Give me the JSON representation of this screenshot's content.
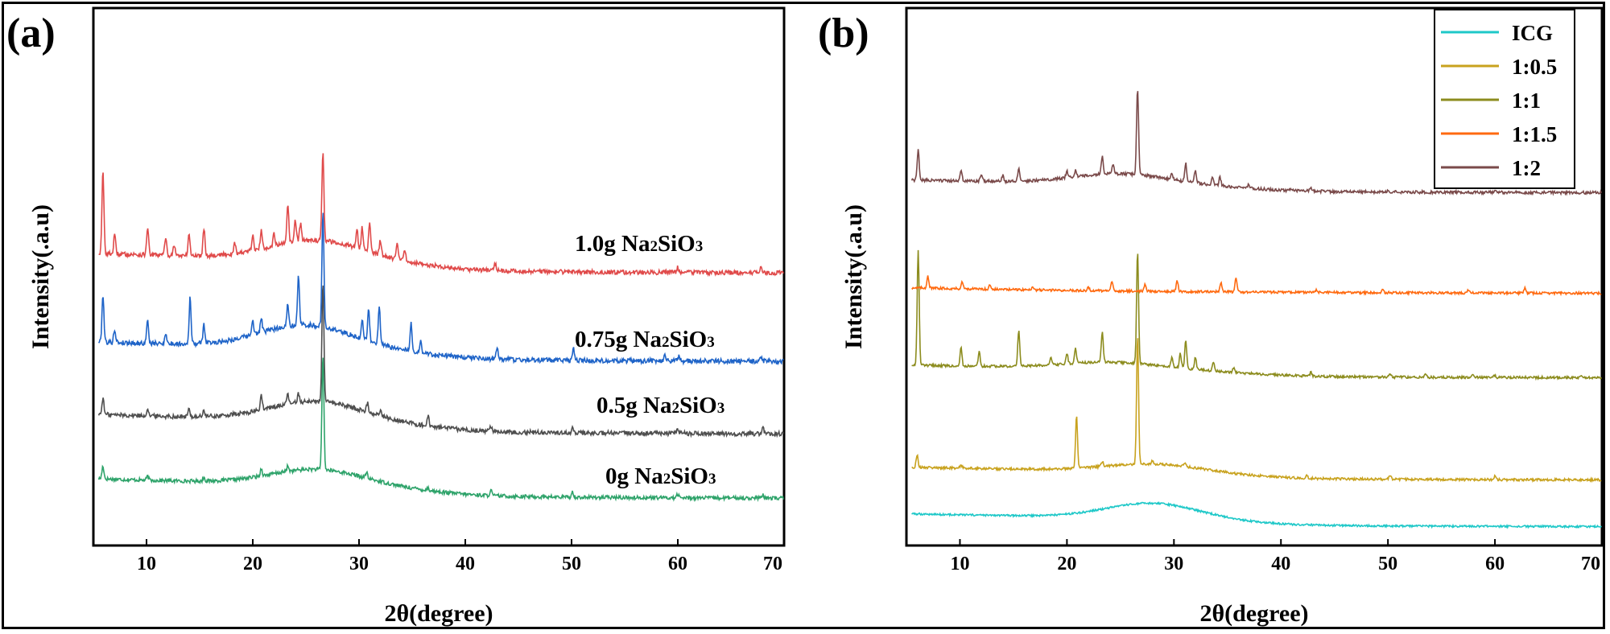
{
  "chart_data": [
    {
      "type": "line",
      "panel": "(a)",
      "xlabel": "2θ(degree)",
      "ylabel": "Intensity(.a.u)",
      "xlim": [
        5,
        70
      ],
      "x_ticks": [
        10,
        20,
        30,
        40,
        50,
        60,
        70
      ],
      "y_ticks": "none",
      "stacking": "vertical offset",
      "series": [
        {
          "name": "0g Na2SiO3",
          "label_main": "0g  Na",
          "label_sub": "2",
          "label_mid": "SiO",
          "label_sub2": "3",
          "color": "#2ea36a",
          "baseline": 0,
          "noise": 0.01,
          "peaks": [
            [
              5.9,
              0.07
            ],
            [
              10.1,
              0.02
            ],
            [
              15.4,
              0.02
            ],
            [
              20.8,
              0.04
            ],
            [
              23.3,
              0.03
            ],
            [
              26.6,
              0.62
            ],
            [
              30.7,
              0.03
            ],
            [
              36.5,
              0.015
            ],
            [
              42.4,
              0.03
            ],
            [
              50.1,
              0.03
            ],
            [
              60.0,
              0.02
            ],
            [
              68.0,
              0.015
            ]
          ],
          "hump": [
            [
              26,
              0.08
            ]
          ]
        },
        {
          "name": "0.5g Na2SiO3",
          "label_main": "0.5g  Na",
          "label_sub": "2",
          "label_mid": "SiO",
          "label_sub2": "3",
          "color": "#4f4f4f",
          "baseline": 1,
          "noise": 0.012,
          "peaks": [
            [
              5.9,
              0.09
            ],
            [
              10.1,
              0.04
            ],
            [
              14.0,
              0.04
            ],
            [
              15.4,
              0.03
            ],
            [
              20.8,
              0.08
            ],
            [
              23.3,
              0.05
            ],
            [
              24.3,
              0.05
            ],
            [
              26.6,
              0.65
            ],
            [
              30.8,
              0.05
            ],
            [
              32.0,
              0.03
            ],
            [
              36.5,
              0.05
            ],
            [
              42.4,
              0.03
            ],
            [
              50.1,
              0.04
            ],
            [
              60.0,
              0.03
            ],
            [
              68.0,
              0.04
            ]
          ],
          "hump": [
            [
              26,
              0.1
            ]
          ]
        },
        {
          "name": "0.75g Na2SiO3",
          "label_main": "0.75g  Na",
          "label_sub": "2",
          "label_mid": "SiO",
          "label_sub2": "3",
          "color": "#1f64c8",
          "baseline": 2,
          "noise": 0.013,
          "peaks": [
            [
              5.9,
              0.26
            ],
            [
              7.0,
              0.07
            ],
            [
              10.1,
              0.12
            ],
            [
              11.8,
              0.06
            ],
            [
              14.1,
              0.25
            ],
            [
              15.4,
              0.1
            ],
            [
              20.0,
              0.08
            ],
            [
              20.8,
              0.08
            ],
            [
              23.3,
              0.12
            ],
            [
              24.3,
              0.26
            ],
            [
              26.6,
              0.62
            ],
            [
              30.3,
              0.1
            ],
            [
              30.9,
              0.17
            ],
            [
              31.9,
              0.2
            ],
            [
              34.9,
              0.15
            ],
            [
              35.8,
              0.06
            ],
            [
              43.0,
              0.06
            ],
            [
              50.2,
              0.06
            ],
            [
              58.8,
              0.03
            ],
            [
              60.1,
              0.03
            ],
            [
              67.8,
              0.02
            ]
          ],
          "hump": [
            [
              25,
              0.12
            ]
          ]
        },
        {
          "name": "1.0g Na2SiO3",
          "label_main": "1.0g  Na",
          "label_sub": "2",
          "label_mid": "SiO",
          "label_sub2": "3",
          "color": "#e04a4a",
          "baseline": 3,
          "noise": 0.012,
          "peaks": [
            [
              5.9,
              0.45
            ],
            [
              7.0,
              0.1
            ],
            [
              10.1,
              0.15
            ],
            [
              11.8,
              0.1
            ],
            [
              12.6,
              0.06
            ],
            [
              14.0,
              0.12
            ],
            [
              15.4,
              0.15
            ],
            [
              18.3,
              0.06
            ],
            [
              20.0,
              0.08
            ],
            [
              20.8,
              0.1
            ],
            [
              22.0,
              0.07
            ],
            [
              23.3,
              0.2
            ],
            [
              24.0,
              0.12
            ],
            [
              24.5,
              0.1
            ],
            [
              26.6,
              0.48
            ],
            [
              29.8,
              0.1
            ],
            [
              30.3,
              0.12
            ],
            [
              31.0,
              0.16
            ],
            [
              32.0,
              0.08
            ],
            [
              33.6,
              0.08
            ],
            [
              34.3,
              0.06
            ],
            [
              42.8,
              0.04
            ],
            [
              60.0,
              0.03
            ],
            [
              67.8,
              0.03
            ]
          ],
          "hump": [
            [
              26,
              0.1
            ]
          ]
        }
      ]
    },
    {
      "type": "line",
      "panel": "(b)",
      "xlabel": "2θ(degree)",
      "ylabel": "Intensity(.a.u)",
      "xlim": [
        5,
        70
      ],
      "x_ticks": [
        10,
        20,
        30,
        40,
        50,
        60,
        70
      ],
      "y_ticks": "none",
      "stacking": "vertical offset",
      "legend_position": "top-right",
      "series": [
        {
          "name": "ICG",
          "color": "#1ec8c8",
          "baseline": 0,
          "noise": 0.008,
          "peaks": [],
          "hump": [
            [
              28,
              0.12
            ]
          ]
        },
        {
          "name": "1:0.5",
          "color": "#c8a21e",
          "baseline": 1,
          "noise": 0.01,
          "peaks": [
            [
              6.0,
              0.1
            ],
            [
              10.1,
              0.03
            ],
            [
              20.9,
              0.43
            ],
            [
              23.3,
              0.04
            ],
            [
              26.6,
              1.06
            ],
            [
              28.0,
              0.03
            ],
            [
              31.0,
              0.03
            ],
            [
              42.4,
              0.03
            ],
            [
              50.2,
              0.03
            ],
            [
              60.0,
              0.03
            ]
          ],
          "hump": [
            [
              28,
              0.06
            ]
          ]
        },
        {
          "name": "1:1",
          "color": "#8c8c1e",
          "baseline": 2,
          "noise": 0.01,
          "peaks": [
            [
              6.1,
              0.95
            ],
            [
              10.1,
              0.15
            ],
            [
              11.8,
              0.12
            ],
            [
              15.5,
              0.3
            ],
            [
              18.5,
              0.06
            ],
            [
              20.0,
              0.09
            ],
            [
              20.8,
              0.12
            ],
            [
              23.3,
              0.25
            ],
            [
              26.6,
              0.93
            ],
            [
              29.8,
              0.08
            ],
            [
              30.6,
              0.12
            ],
            [
              31.1,
              0.24
            ],
            [
              32.0,
              0.1
            ],
            [
              33.7,
              0.07
            ],
            [
              35.6,
              0.04
            ],
            [
              42.8,
              0.03
            ],
            [
              50.2,
              0.03
            ],
            [
              53.5,
              0.02
            ],
            [
              57.9,
              0.02
            ],
            [
              60.0,
              0.02
            ],
            [
              68.0,
              0.02
            ]
          ],
          "hump": [
            [
              24,
              0.05
            ]
          ]
        },
        {
          "name": "1:1.5",
          "color": "#ff6a10",
          "baseline": 3,
          "noise": 0.01,
          "peaks": [
            [
              7.0,
              0.1
            ],
            [
              10.2,
              0.06
            ],
            [
              12.8,
              0.04
            ],
            [
              16.8,
              0.03
            ],
            [
              22.0,
              0.03
            ],
            [
              24.2,
              0.07
            ],
            [
              27.3,
              0.06
            ],
            [
              30.3,
              0.09
            ],
            [
              34.4,
              0.07
            ],
            [
              35.8,
              0.11
            ],
            [
              43.3,
              0.02
            ],
            [
              49.5,
              0.02
            ],
            [
              57.5,
              0.03
            ],
            [
              62.8,
              0.04
            ]
          ],
          "hump": []
        },
        {
          "name": "1:2",
          "color": "#7a4a4a",
          "baseline": 4,
          "noise": 0.012,
          "peaks": [
            [
              6.1,
              0.25
            ],
            [
              10.1,
              0.08
            ],
            [
              12.0,
              0.06
            ],
            [
              14.0,
              0.05
            ],
            [
              15.5,
              0.1
            ],
            [
              20.0,
              0.06
            ],
            [
              20.8,
              0.05
            ],
            [
              23.3,
              0.15
            ],
            [
              24.3,
              0.08
            ],
            [
              26.6,
              0.72
            ],
            [
              29.8,
              0.06
            ],
            [
              31.1,
              0.15
            ],
            [
              32.0,
              0.1
            ],
            [
              33.6,
              0.06
            ],
            [
              34.3,
              0.07
            ],
            [
              37.0,
              0.03
            ],
            [
              41.0,
              0.02
            ],
            [
              42.8,
              0.02
            ],
            [
              50.0,
              0.015
            ],
            [
              60.0,
              0.015
            ]
          ],
          "hump": [
            [
              25,
              0.08
            ]
          ]
        }
      ]
    }
  ],
  "legend": {
    "entries": [
      "ICG",
      "1:0.5",
      "1:1",
      "1:1.5",
      "1:2"
    ]
  }
}
